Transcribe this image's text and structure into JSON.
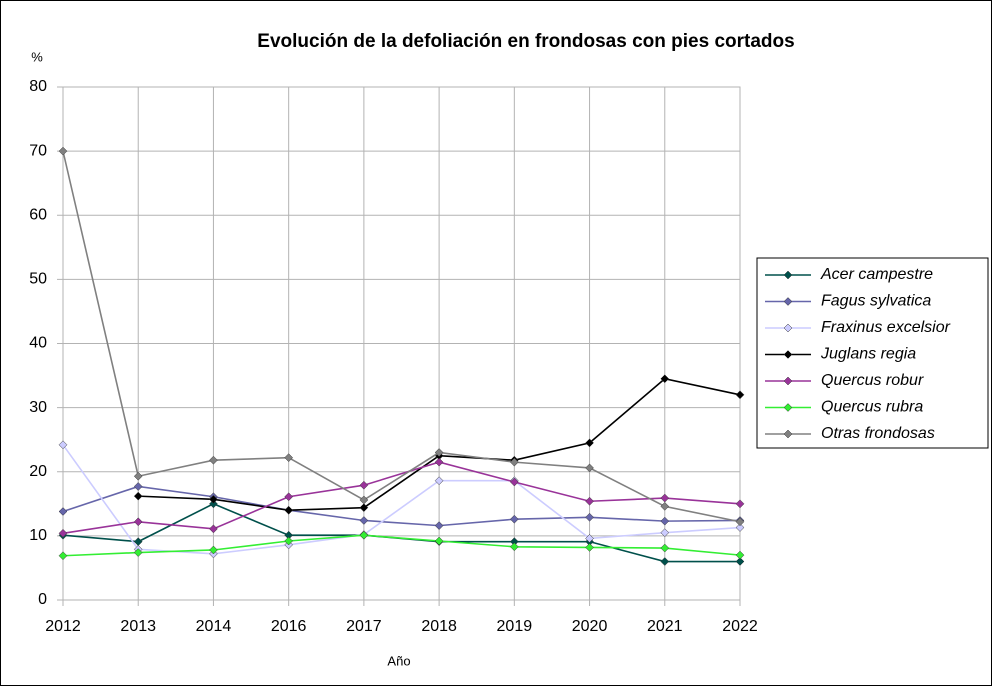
{
  "chart_data": {
    "type": "line",
    "title": "Evolución de la defoliación en frondosas con pies cortados",
    "y_label": "%",
    "x_label": "Año",
    "categories": [
      "2012",
      "2013",
      "2014",
      "2016",
      "2017",
      "2018",
      "2019",
      "2020",
      "2021",
      "2022"
    ],
    "ylim": [
      0,
      80
    ],
    "yticks": [
      0,
      10,
      20,
      30,
      40,
      50,
      60,
      70,
      80
    ],
    "grid": true,
    "legend": "right",
    "series": [
      {
        "name": "Acer campestre",
        "color": "#00504b",
        "values": [
          10.1,
          9.1,
          15,
          10.1,
          10.1,
          9.1,
          9.1,
          9.1,
          6,
          6
        ]
      },
      {
        "name": "Fagus sylvatica",
        "color": "#6666aa",
        "values": [
          13.8,
          17.7,
          16.1,
          14,
          12.4,
          11.6,
          12.6,
          12.9,
          12.3,
          12.4
        ]
      },
      {
        "name": "Fraxinus excelsior",
        "color": "#ccccff",
        "values": [
          24.2,
          7.9,
          7.2,
          8.6,
          10.2,
          18.6,
          18.6,
          9.6,
          10.5,
          11.3
        ]
      },
      {
        "name": "Juglans regia",
        "color": "#000000",
        "values": [
          null,
          16.2,
          15.7,
          14,
          14.4,
          22.5,
          21.8,
          24.5,
          34.5,
          32
        ]
      },
      {
        "name": "Quercus robur",
        "color": "#993399",
        "values": [
          10.4,
          12.2,
          11.1,
          16.1,
          17.9,
          21.5,
          18.4,
          15.4,
          15.9,
          15
        ]
      },
      {
        "name": "Quercus rubra",
        "color": "#33ee33",
        "values": [
          6.9,
          7.4,
          7.8,
          9.2,
          10.1,
          9.2,
          8.3,
          8.2,
          8.1,
          7
        ]
      },
      {
        "name": "Otras frondosas",
        "color": "#808080",
        "values": [
          70,
          19.3,
          21.8,
          22.2,
          15.6,
          23,
          21.5,
          20.6,
          14.6,
          12.2
        ]
      }
    ]
  }
}
